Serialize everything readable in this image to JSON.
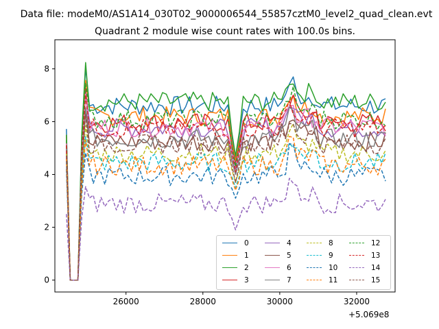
{
  "suptitle": "Data file: modeM0/AS1A14_030T02_9000006544_55857cztM0_level2_quad_clean.evt",
  "chart_data": {
    "type": "line",
    "title": "Quadrant 2 module wise count rates with 100.0s bins.",
    "xlabel": "",
    "ylabel": "",
    "x_offset_label": "+5.069e8",
    "xlim": [
      24150,
      33000
    ],
    "ylim": [
      -0.45,
      9.1
    ],
    "xticks": [
      26000,
      28000,
      30000,
      32000
    ],
    "xtick_labels": [
      "26000",
      "28000",
      "30000",
      "32000"
    ],
    "yticks": [
      0,
      2,
      4,
      6,
      8
    ],
    "ytick_labels": [
      "0",
      "2",
      "4",
      "6",
      "8"
    ],
    "legend_loc": "lower right",
    "legend_ncol": 4,
    "x_start": 24450,
    "x_step": 100,
    "x_count": 84,
    "dip_x": 28850,
    "series": [
      {
        "name": "0",
        "color": "#1f77b4",
        "style": "solid",
        "start": 5.72,
        "mean": 6.6,
        "dip": 4.6
      },
      {
        "name": "1",
        "color": "#ff7f0e",
        "style": "solid",
        "start": 5.5,
        "mean": 6.2,
        "dip": 4.5
      },
      {
        "name": "2",
        "color": "#2ca02c",
        "style": "solid",
        "start": 5.5,
        "mean": 6.75,
        "dip": 4.7
      },
      {
        "name": "3",
        "color": "#d62728",
        "style": "solid",
        "start": 5.2,
        "mean": 5.95,
        "dip": 4.4
      },
      {
        "name": "4",
        "color": "#9467bd",
        "style": "solid",
        "start": 5.1,
        "mean": 5.75,
        "dip": 4.2
      },
      {
        "name": "5",
        "color": "#8c564b",
        "style": "solid",
        "start": 5.0,
        "mean": 5.25,
        "dip": 4.0
      },
      {
        "name": "6",
        "color": "#e377c2",
        "style": "solid",
        "start": 5.2,
        "mean": 5.8,
        "dip": 4.3
      },
      {
        "name": "7",
        "color": "#7f7f7f",
        "style": "solid",
        "start": 5.0,
        "mean": 5.35,
        "dip": 4.0
      },
      {
        "name": "8",
        "color": "#bcbd22",
        "style": "dashed",
        "start": 4.8,
        "mean": 4.8,
        "dip": 3.7
      },
      {
        "name": "9",
        "color": "#17becf",
        "style": "dashed",
        "start": 4.5,
        "mean": 4.45,
        "dip": 3.5
      },
      {
        "name": "10",
        "color": "#1f77b4",
        "style": "dashed",
        "start": 4.2,
        "mean": 3.95,
        "dip": 3.1
      },
      {
        "name": "11",
        "color": "#ff7f0e",
        "style": "dashed",
        "start": 4.6,
        "mean": 4.35,
        "dip": 3.4
      },
      {
        "name": "12",
        "color": "#2ca02c",
        "style": "dashed",
        "start": 5.3,
        "mean": 6.1,
        "dip": 4.3
      },
      {
        "name": "13",
        "color": "#d62728",
        "style": "dashed",
        "start": 5.1,
        "mean": 5.75,
        "dip": 4.1
      },
      {
        "name": "14",
        "color": "#9467bd",
        "style": "dashed",
        "start": 2.5,
        "mean": 2.9,
        "dip": 1.9
      },
      {
        "name": "15",
        "color": "#8c564b",
        "style": "dashed",
        "start": 4.7,
        "mean": 5.15,
        "dip": 3.7
      }
    ]
  }
}
